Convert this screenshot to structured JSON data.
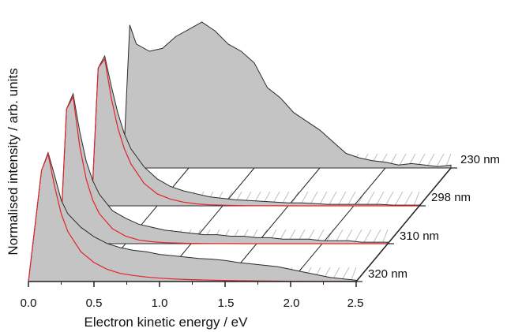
{
  "chart_data": {
    "type": "area",
    "style": "3d-waterfall",
    "xlabel": "Electron kinetic energy / eV",
    "ylabel": "Normalised intensity / arb. units",
    "xlim": [
      0.0,
      2.5
    ],
    "x_tick_labels": [
      "0.0",
      "0.5",
      "1.0",
      "1.5",
      "2.0",
      "2.5"
    ],
    "y_ticks_shown": false,
    "colors": {
      "fill": "#c4c4c4",
      "data_line": "#2b2b2b",
      "fit_line": "#e0242a",
      "floor_hatch": "#bdbdbd",
      "axis": "#222222"
    },
    "series": [
      {
        "name": "320 nm",
        "x": [
          0.0,
          0.1,
          0.15,
          0.2,
          0.25,
          0.3,
          0.4,
          0.5,
          0.6,
          0.7,
          0.8,
          0.9,
          1.0,
          1.1,
          1.2,
          1.3,
          1.4,
          1.5,
          1.6,
          1.7,
          1.8,
          1.9,
          2.0,
          2.1,
          2.2,
          2.3,
          2.4,
          2.5
        ],
        "y": [
          0.0,
          0.82,
          0.95,
          0.78,
          0.6,
          0.5,
          0.4,
          0.33,
          0.28,
          0.25,
          0.23,
          0.22,
          0.2,
          0.19,
          0.18,
          0.17,
          0.165,
          0.155,
          0.14,
          0.13,
          0.12,
          0.11,
          0.09,
          0.07,
          0.05,
          0.03,
          0.02,
          0.01
        ],
        "fit": [
          0.0,
          0.82,
          0.94,
          0.7,
          0.5,
          0.37,
          0.22,
          0.14,
          0.09,
          0.06,
          0.045,
          0.033,
          0.025,
          0.019,
          0.015,
          0.012,
          0.01,
          0.008,
          0.006,
          0.005,
          0.004,
          0.003,
          0.002,
          0.0015,
          0.001,
          0.0007,
          0.0004,
          0.0002
        ]
      },
      {
        "name": "310 nm",
        "x": [
          0.0,
          0.05,
          0.1,
          0.15,
          0.2,
          0.25,
          0.3,
          0.4,
          0.5,
          0.6,
          0.7,
          0.8,
          0.9,
          1.0,
          1.1,
          1.2,
          1.3,
          1.4,
          1.5,
          1.6,
          1.7,
          1.8,
          1.9,
          2.0,
          2.1,
          2.2,
          2.3,
          2.4,
          2.5
        ],
        "y": [
          0.0,
          0.9,
          1.0,
          0.75,
          0.55,
          0.42,
          0.33,
          0.22,
          0.17,
          0.13,
          0.11,
          0.09,
          0.08,
          0.07,
          0.06,
          0.06,
          0.05,
          0.05,
          0.04,
          0.04,
          0.03,
          0.03,
          0.03,
          0.02,
          0.02,
          0.02,
          0.01,
          0.01,
          0.01
        ],
        "fit": [
          0.0,
          0.9,
          0.98,
          0.65,
          0.43,
          0.29,
          0.2,
          0.1,
          0.05,
          0.025,
          0.013,
          0.007,
          0.004,
          0.002,
          0.001,
          0.0006,
          0.0003,
          0.0002,
          0.0001,
          0.0,
          0.0,
          0.0,
          0.0,
          0.0,
          0.0,
          0.0,
          0.0,
          0.0,
          0.0
        ]
      },
      {
        "name": "298 nm",
        "x": [
          0.0,
          0.05,
          0.1,
          0.15,
          0.2,
          0.25,
          0.3,
          0.4,
          0.5,
          0.6,
          0.7,
          0.8,
          0.9,
          1.0,
          1.1,
          1.2,
          1.3,
          1.4,
          1.5,
          1.6,
          1.7,
          1.8,
          1.9,
          2.0,
          2.1,
          2.2,
          2.3,
          2.4,
          2.5
        ],
        "y": [
          0.0,
          0.92,
          1.0,
          0.8,
          0.62,
          0.48,
          0.38,
          0.26,
          0.18,
          0.13,
          0.1,
          0.08,
          0.06,
          0.05,
          0.04,
          0.035,
          0.03,
          0.025,
          0.02,
          0.02,
          0.015,
          0.01,
          0.01,
          0.01,
          0.01,
          0.01,
          0.005,
          0.005,
          0.005
        ],
        "fit": [
          0.0,
          0.92,
          0.98,
          0.72,
          0.52,
          0.38,
          0.28,
          0.15,
          0.08,
          0.045,
          0.025,
          0.013,
          0.007,
          0.004,
          0.002,
          0.001,
          0.0006,
          0.0003,
          0.0002,
          0.0001,
          0.0,
          0.0,
          0.0,
          0.0,
          0.0,
          0.0,
          0.0,
          0.0,
          0.0
        ]
      },
      {
        "name": "230 nm",
        "x": [
          0.0,
          0.05,
          0.1,
          0.2,
          0.3,
          0.4,
          0.5,
          0.6,
          0.7,
          0.8,
          0.9,
          1.0,
          1.1,
          1.2,
          1.3,
          1.4,
          1.5,
          1.6,
          1.7,
          1.8,
          1.9,
          2.0,
          2.1,
          2.2,
          2.3,
          2.4,
          2.5
        ],
        "y": [
          0.0,
          0.98,
          0.85,
          0.8,
          0.82,
          0.9,
          0.95,
          1.0,
          0.94,
          0.85,
          0.8,
          0.72,
          0.55,
          0.48,
          0.38,
          0.32,
          0.26,
          0.18,
          0.1,
          0.07,
          0.05,
          0.04,
          0.02,
          0.03,
          0.02,
          0.01,
          0.02
        ]
      }
    ]
  }
}
